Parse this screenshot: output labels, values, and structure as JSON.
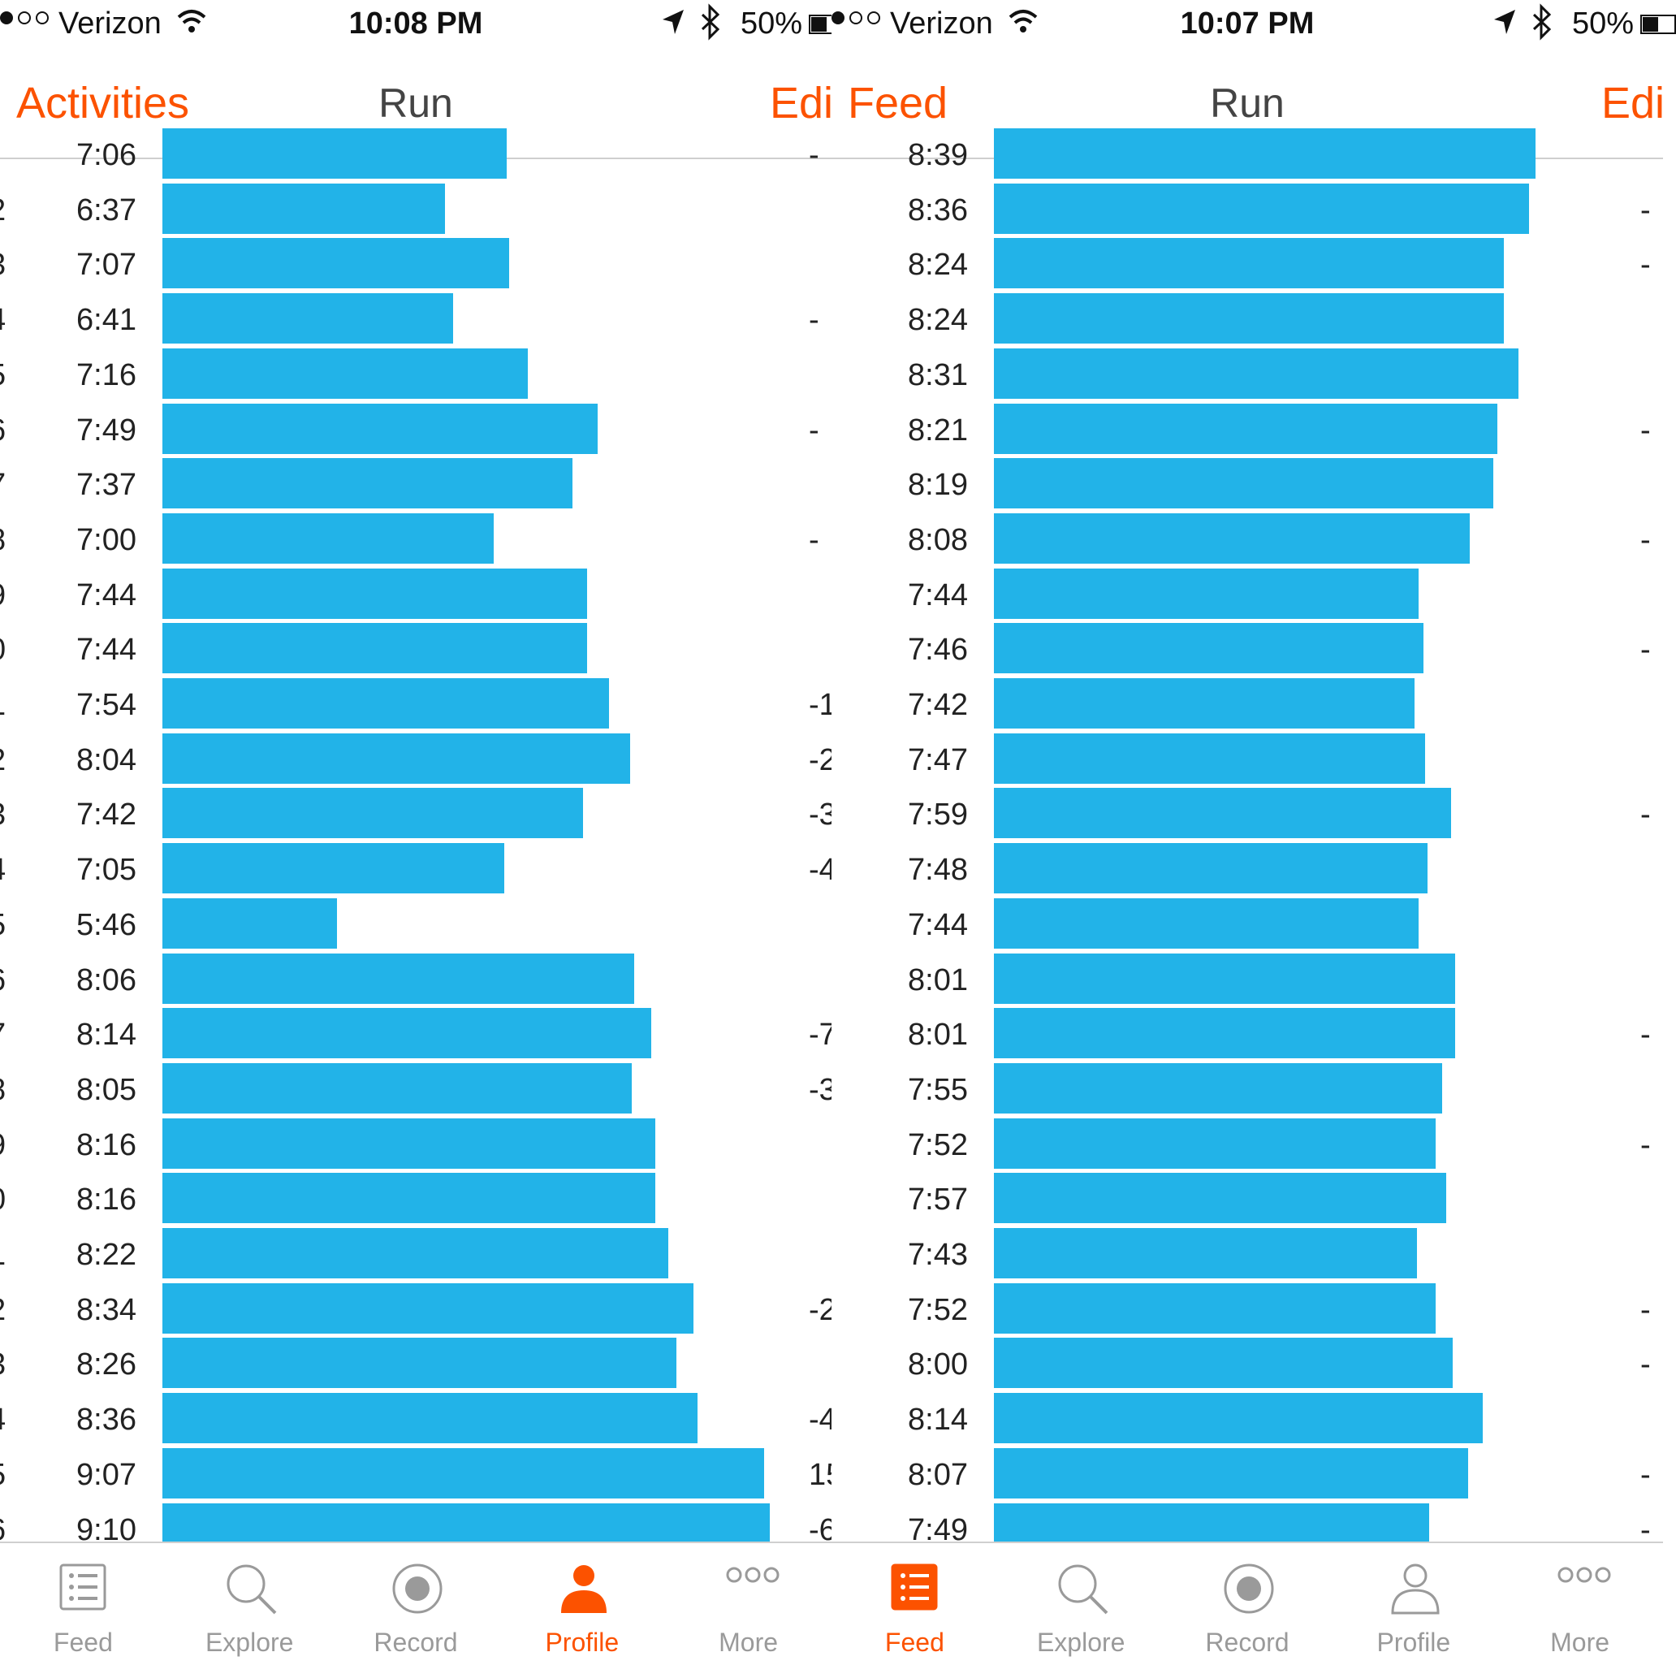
{
  "colors": {
    "accent": "#fc5200",
    "bar": "#22b3e8",
    "text": "#222222",
    "inactive": "#9a9a9a"
  },
  "panels": [
    {
      "status": {
        "carrier": "Verizon",
        "time": "10:08 PM",
        "battery": "50%",
        "battery_level": 0.5
      },
      "nav": {
        "back": "Activities",
        "title": "Run",
        "edit": "Edi"
      },
      "rows": [
        {
          "num": "",
          "pace": "7:06",
          "elev": "-",
          "pace_min_per_mi": 7.1
        },
        {
          "num": "2",
          "pace": "6:37",
          "elev": "",
          "pace_min_per_mi": 6.617
        },
        {
          "num": "3",
          "pace": "7:07",
          "elev": "",
          "pace_min_per_mi": 7.117
        },
        {
          "num": "4",
          "pace": "6:41",
          "elev": "-",
          "pace_min_per_mi": 6.683
        },
        {
          "num": "5",
          "pace": "7:16",
          "elev": "",
          "pace_min_per_mi": 7.267
        },
        {
          "num": "6",
          "pace": "7:49",
          "elev": "-",
          "pace_min_per_mi": 7.817
        },
        {
          "num": "7",
          "pace": "7:37",
          "elev": "",
          "pace_min_per_mi": 7.617
        },
        {
          "num": "8",
          "pace": "7:00",
          "elev": "-",
          "pace_min_per_mi": 7.0
        },
        {
          "num": "9",
          "pace": "7:44",
          "elev": "",
          "pace_min_per_mi": 7.733
        },
        {
          "num": "0",
          "pace": "7:44",
          "elev": "",
          "pace_min_per_mi": 7.733
        },
        {
          "num": "1",
          "pace": "7:54",
          "elev": "-1",
          "pace_min_per_mi": 7.9
        },
        {
          "num": "2",
          "pace": "8:04",
          "elev": "-2",
          "pace_min_per_mi": 8.067
        },
        {
          "num": "3",
          "pace": "7:42",
          "elev": "-3",
          "pace_min_per_mi": 7.7
        },
        {
          "num": "4",
          "pace": "7:05",
          "elev": "-4",
          "pace_min_per_mi": 7.083
        },
        {
          "num": "5",
          "pace": "5:46",
          "elev": "",
          "pace_min_per_mi": 5.767
        },
        {
          "num": "6",
          "pace": "8:06",
          "elev": "",
          "pace_min_per_mi": 8.1
        },
        {
          "num": "7",
          "pace": "8:14",
          "elev": "-7",
          "pace_min_per_mi": 8.233
        },
        {
          "num": "8",
          "pace": "8:05",
          "elev": "-3",
          "pace_min_per_mi": 8.083
        },
        {
          "num": "9",
          "pace": "8:16",
          "elev": "",
          "pace_min_per_mi": 8.267
        },
        {
          "num": "0",
          "pace": "8:16",
          "elev": "",
          "pace_min_per_mi": 8.267
        },
        {
          "num": "1",
          "pace": "8:22",
          "elev": "",
          "pace_min_per_mi": 8.367
        },
        {
          "num": "2",
          "pace": "8:34",
          "elev": "-2",
          "pace_min_per_mi": 8.567
        },
        {
          "num": "3",
          "pace": "8:26",
          "elev": "",
          "pace_min_per_mi": 8.433
        },
        {
          "num": "4",
          "pace": "8:36",
          "elev": "-4",
          "pace_min_per_mi": 8.6
        },
        {
          "num": "5",
          "pace": "9:07",
          "elev": "15",
          "pace_min_per_mi": 9.117
        },
        {
          "num": "6",
          "pace": "9:10",
          "elev": "-6",
          "pace_min_per_mi": 9.167
        }
      ],
      "tabs": [
        {
          "label": "Feed",
          "icon": "feed-icon",
          "active": false
        },
        {
          "label": "Explore",
          "icon": "search-icon",
          "active": false
        },
        {
          "label": "Record",
          "icon": "record-icon",
          "active": false
        },
        {
          "label": "Profile",
          "icon": "profile-icon",
          "active": true
        },
        {
          "label": "More",
          "icon": "more-icon",
          "active": false
        }
      ]
    },
    {
      "status": {
        "carrier": "Verizon",
        "time": "10:07 PM",
        "battery": "50%",
        "battery_level": 0.5
      },
      "nav": {
        "back": "Feed",
        "title": "Run",
        "edit": "Edi"
      },
      "rows": [
        {
          "num": "",
          "pace": "8:39",
          "elev": "",
          "pace_min_per_mi": 8.65
        },
        {
          "num": "",
          "pace": "8:36",
          "elev": "-",
          "pace_min_per_mi": 8.6
        },
        {
          "num": "",
          "pace": "8:24",
          "elev": "-",
          "pace_min_per_mi": 8.4
        },
        {
          "num": "",
          "pace": "8:24",
          "elev": "",
          "pace_min_per_mi": 8.4
        },
        {
          "num": "",
          "pace": "8:31",
          "elev": "",
          "pace_min_per_mi": 8.517
        },
        {
          "num": "",
          "pace": "8:21",
          "elev": "-",
          "pace_min_per_mi": 8.35
        },
        {
          "num": "",
          "pace": "8:19",
          "elev": "",
          "pace_min_per_mi": 8.317
        },
        {
          "num": "",
          "pace": "8:08",
          "elev": "-",
          "pace_min_per_mi": 8.133
        },
        {
          "num": "",
          "pace": "7:44",
          "elev": "",
          "pace_min_per_mi": 7.733
        },
        {
          "num": "",
          "pace": "7:46",
          "elev": "-",
          "pace_min_per_mi": 7.767
        },
        {
          "num": "",
          "pace": "7:42",
          "elev": "",
          "pace_min_per_mi": 7.7
        },
        {
          "num": "",
          "pace": "7:47",
          "elev": "",
          "pace_min_per_mi": 7.783
        },
        {
          "num": "",
          "pace": "7:59",
          "elev": "-",
          "pace_min_per_mi": 7.983
        },
        {
          "num": "",
          "pace": "7:48",
          "elev": "",
          "pace_min_per_mi": 7.8
        },
        {
          "num": "",
          "pace": "7:44",
          "elev": "",
          "pace_min_per_mi": 7.733
        },
        {
          "num": "",
          "pace": "8:01",
          "elev": "",
          "pace_min_per_mi": 8.017
        },
        {
          "num": "",
          "pace": "8:01",
          "elev": "-",
          "pace_min_per_mi": 8.017
        },
        {
          "num": "",
          "pace": "7:55",
          "elev": "",
          "pace_min_per_mi": 7.917
        },
        {
          "num": "",
          "pace": "7:52",
          "elev": "-",
          "pace_min_per_mi": 7.867
        },
        {
          "num": "",
          "pace": "7:57",
          "elev": "",
          "pace_min_per_mi": 7.95
        },
        {
          "num": "",
          "pace": "7:43",
          "elev": "",
          "pace_min_per_mi": 7.717
        },
        {
          "num": "",
          "pace": "7:52",
          "elev": "-",
          "pace_min_per_mi": 7.867
        },
        {
          "num": "",
          "pace": "8:00",
          "elev": "-",
          "pace_min_per_mi": 8.0
        },
        {
          "num": "",
          "pace": "8:14",
          "elev": "",
          "pace_min_per_mi": 8.233
        },
        {
          "num": "",
          "pace": "8:07",
          "elev": "-",
          "pace_min_per_mi": 8.117
        },
        {
          "num": "",
          "pace": "7:49",
          "elev": "-",
          "pace_min_per_mi": 7.817
        }
      ],
      "tabs": [
        {
          "label": "Feed",
          "icon": "feed-icon",
          "active": true
        },
        {
          "label": "Explore",
          "icon": "search-icon",
          "active": false
        },
        {
          "label": "Record",
          "icon": "record-icon",
          "active": false
        },
        {
          "label": "Profile",
          "icon": "profile-icon",
          "active": false
        },
        {
          "label": "More",
          "icon": "more-icon",
          "active": false
        }
      ]
    }
  ]
}
